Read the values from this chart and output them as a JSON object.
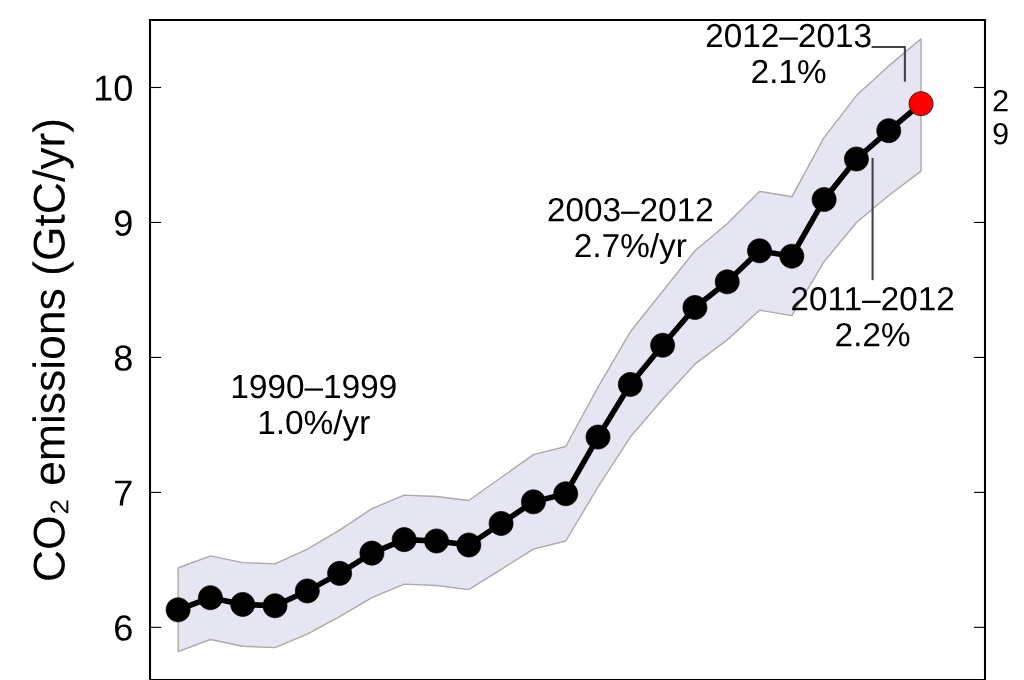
{
  "chart_data": {
    "type": "line",
    "ylabel": "CO₂ emissions (GtC/yr)",
    "categories": [
      null,
      null,
      null,
      null,
      null,
      null,
      null,
      null,
      null,
      null,
      null,
      null,
      null,
      null,
      null,
      null,
      null,
      null,
      null,
      null,
      null,
      null,
      null,
      null
    ],
    "series": [
      {
        "color": "#000000",
        "colors": [
          "#000000",
          "#000000",
          "#000000",
          "#000000",
          "#000000",
          "#000000",
          "#000000",
          "#000000",
          "#000000",
          "#000000",
          "#000000",
          "#000000",
          "#000000",
          "#000000",
          "#000000",
          "#000000",
          "#000000",
          "#000000",
          "#000000",
          "#000000",
          "#000000",
          "#000000",
          "#000000",
          "#ff0000"
        ],
        "values": [
          6.13,
          6.22,
          6.17,
          6.16,
          6.27,
          6.4,
          6.55,
          6.65,
          6.64,
          6.61,
          6.77,
          6.93,
          6.99,
          7.41,
          7.8,
          8.09,
          8.37,
          8.56,
          8.79,
          8.75,
          9.17,
          9.47,
          9.68,
          9.88
        ],
        "lower": [
          5.82,
          5.91,
          5.86,
          5.85,
          5.95,
          6.08,
          6.22,
          6.32,
          6.31,
          6.28,
          6.43,
          6.58,
          6.64,
          7.04,
          7.41,
          7.69,
          7.95,
          8.13,
          8.35,
          8.31,
          8.71,
          9.0,
          9.2,
          9.38
        ],
        "upper": [
          6.44,
          6.53,
          6.48,
          6.47,
          6.58,
          6.72,
          6.88,
          6.98,
          6.97,
          6.94,
          7.11,
          7.28,
          7.34,
          7.78,
          8.19,
          8.49,
          8.79,
          8.99,
          9.23,
          9.19,
          9.63,
          9.94,
          10.16,
          10.36
        ]
      }
    ],
    "ylim": [
      5.61,
      10.5
    ],
    "yticks": [
      6,
      7,
      8,
      9,
      10
    ],
    "marker": "circle",
    "line_style": "solid",
    "grid": false,
    "annotations": [
      "1990–1999\n1.0%/yr",
      "2003–2012\n2.7%/yr",
      "2012–2013\n2.1%",
      "2011–2012\n2.2%",
      "2\n9"
    ]
  }
}
